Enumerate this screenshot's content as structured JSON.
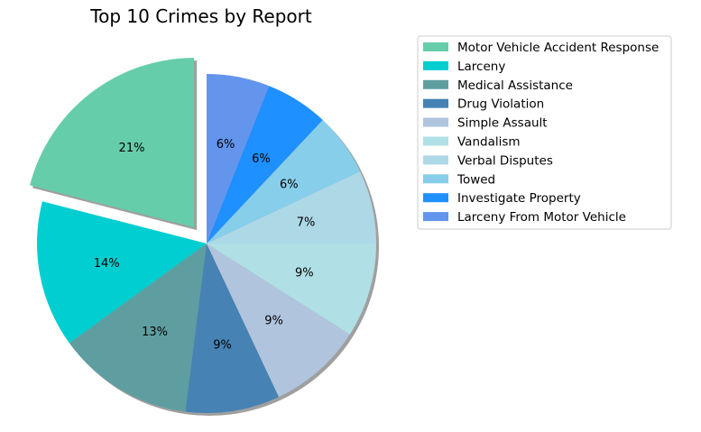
{
  "chart_data": {
    "type": "pie",
    "title": "Top 10 Crimes by Report",
    "slices": [
      {
        "label": "Motor Vehicle Accident Response",
        "value": 21,
        "color": "#66cdaa",
        "exploded": true
      },
      {
        "label": "Larceny",
        "value": 14,
        "color": "#00ced1",
        "exploded": false
      },
      {
        "label": "Medical Assistance",
        "value": 13,
        "color": "#5f9ea0",
        "exploded": false
      },
      {
        "label": "Drug Violation",
        "value": 9,
        "color": "#4682b4",
        "exploded": false
      },
      {
        "label": "Simple Assault",
        "value": 9,
        "color": "#b0c4de",
        "exploded": false
      },
      {
        "label": "Vandalism",
        "value": 9,
        "color": "#b0e0e6",
        "exploded": false
      },
      {
        "label": "Verbal Disputes",
        "value": 7,
        "color": "#add8e6",
        "exploded": false
      },
      {
        "label": "Towed",
        "value": 6,
        "color": "#87ceeb",
        "exploded": false
      },
      {
        "label": "Investigate Property",
        "value": 6,
        "color": "#1e90ff",
        "exploded": false
      },
      {
        "label": "Larceny From Motor Vehicle",
        "value": 6,
        "color": "#6495ed",
        "exploded": false
      }
    ],
    "start_angle": "90",
    "direction": "counterclockwise",
    "shadow": true,
    "legend_position": "upper-right"
  }
}
